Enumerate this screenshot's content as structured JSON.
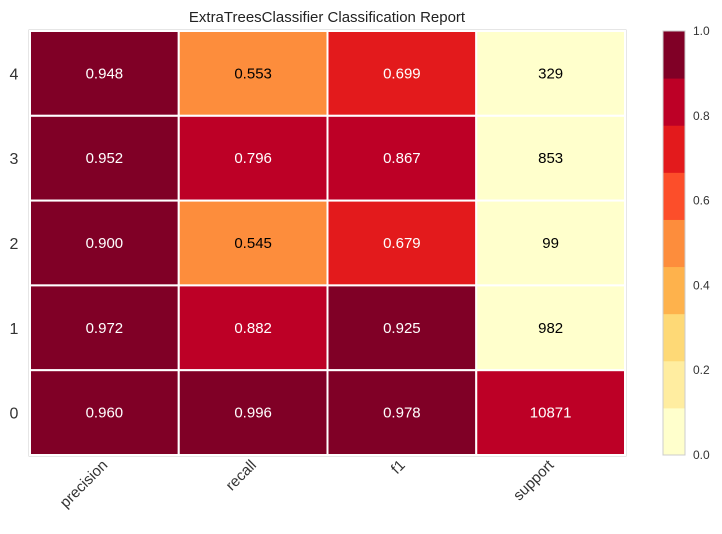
{
  "chart_data": {
    "type": "heatmap",
    "title": "ExtraTreesClassifier Classification Report",
    "columns": [
      "precision",
      "recall",
      "f1",
      "support"
    ],
    "rows": [
      "4",
      "3",
      "2",
      "1",
      "0"
    ],
    "cells": [
      [
        "0.948",
        "0.553",
        "0.699",
        "329"
      ],
      [
        "0.952",
        "0.796",
        "0.867",
        "853"
      ],
      [
        "0.900",
        "0.545",
        "0.679",
        "99"
      ],
      [
        "0.972",
        "0.882",
        "0.925",
        "982"
      ],
      [
        "0.960",
        "0.996",
        "0.978",
        "10871"
      ]
    ],
    "colorbar": {
      "min": 0.0,
      "max": 1.0,
      "tick_labels": [
        "0.0",
        "0.2",
        "0.4",
        "0.6",
        "0.8",
        "1.0"
      ],
      "colors": [
        "#ffffcc",
        "#ffeda0",
        "#fed976",
        "#feb24c",
        "#fd8d3c",
        "#fc4e2a",
        "#e31a1c",
        "#bd0026",
        "#800026"
      ]
    },
    "cell_colors": [
      [
        "#800026",
        "#fd8d3c",
        "#e31a1c",
        "#ffffcc"
      ],
      [
        "#800026",
        "#bd0026",
        "#bd0026",
        "#ffffcc"
      ],
      [
        "#800026",
        "#fd8d3c",
        "#e31a1c",
        "#ffffcc"
      ],
      [
        "#800026",
        "#bd0026",
        "#800026",
        "#ffffcc"
      ],
      [
        "#800026",
        "#800026",
        "#800026",
        "#bd0026"
      ]
    ],
    "text_colors": [
      [
        "#ffffff",
        "#000000",
        "#ffffff",
        "#000000"
      ],
      [
        "#ffffff",
        "#ffffff",
        "#ffffff",
        "#000000"
      ],
      [
        "#ffffff",
        "#000000",
        "#ffffff",
        "#000000"
      ],
      [
        "#ffffff",
        "#ffffff",
        "#ffffff",
        "#000000"
      ],
      [
        "#ffffff",
        "#ffffff",
        "#ffffff",
        "#ffffff"
      ]
    ],
    "grid": false
  }
}
